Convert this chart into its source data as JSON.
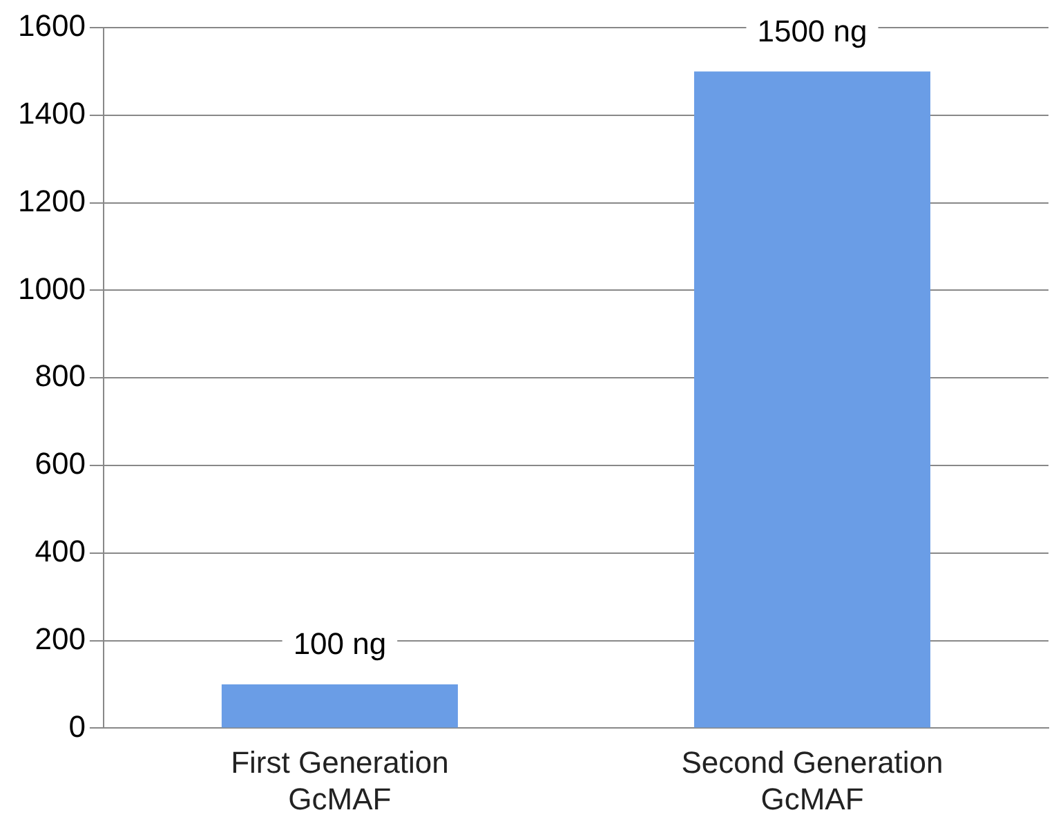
{
  "chart_data": {
    "type": "bar",
    "categories": [
      "First Generation GcMAF",
      "Second Generation GcMAF"
    ],
    "values": [
      100,
      1500
    ],
    "color": "#6a9de6",
    "value_labels": [
      "100 ng",
      "1500 ng"
    ],
    "ylim": [
      0,
      1600
    ],
    "yticks": [
      0,
      200,
      400,
      600,
      800,
      1000,
      1200,
      1400,
      1600
    ],
    "grid": "y",
    "legend": false
  }
}
